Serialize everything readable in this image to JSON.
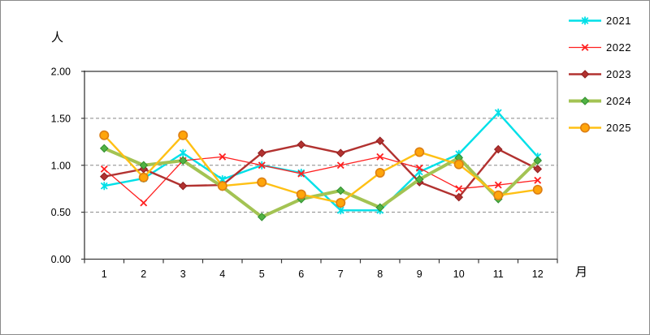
{
  "chart_data": {
    "type": "line",
    "title": "",
    "ylabel": "人",
    "xlabel": "月",
    "categories": [
      "1",
      "2",
      "3",
      "4",
      "5",
      "6",
      "7",
      "8",
      "9",
      "10",
      "11",
      "12"
    ],
    "y_ticks": [
      "0.00",
      "0.50",
      "1.00",
      "1.50",
      "2.00"
    ],
    "y_tick_values": [
      0,
      0.5,
      1.0,
      1.5,
      2.0
    ],
    "ylim": [
      0,
      2
    ],
    "grid": "horizontal-dashed",
    "legend_position": "right",
    "series": [
      {
        "name": "2021",
        "color": "#00E0E8",
        "marker": "asterisk",
        "line_width": 2.4,
        "values": [
          0.78,
          0.86,
          1.13,
          0.85,
          1.0,
          0.92,
          0.52,
          0.52,
          0.93,
          1.12,
          1.56,
          1.09
        ]
      },
      {
        "name": "2022",
        "color": "#FF2020",
        "marker": "x",
        "line_width": 1.3,
        "values": [
          0.96,
          0.6,
          1.05,
          1.09,
          1.0,
          0.91,
          1.0,
          1.09,
          0.97,
          0.75,
          0.79,
          0.84
        ]
      },
      {
        "name": "2023",
        "color": "#B23230",
        "marker": "diamond",
        "marker_fill": "#B23230",
        "marker_stroke": "#8F1F1F",
        "line_width": 2.4,
        "values": [
          0.88,
          0.96,
          0.78,
          0.79,
          1.13,
          1.22,
          1.13,
          1.26,
          0.82,
          0.66,
          1.17,
          0.96
        ]
      },
      {
        "name": "2024",
        "color": "#A3C353",
        "marker": "diamond",
        "marker_fill": "#52B244",
        "marker_stroke": "#2F8F2F",
        "line_width": 4.0,
        "values": [
          1.18,
          1.0,
          1.05,
          0.77,
          0.45,
          0.64,
          0.73,
          0.55,
          0.85,
          1.08,
          0.64,
          1.05
        ]
      },
      {
        "name": "2025",
        "color": "#FFC014",
        "marker": "circle",
        "marker_fill": "#FFA50A",
        "marker_stroke": "#DC7E14",
        "line_width": 2.4,
        "values": [
          1.32,
          0.87,
          1.32,
          0.78,
          0.82,
          0.69,
          0.6,
          0.92,
          1.14,
          1.01,
          0.68,
          0.74
        ]
      }
    ]
  }
}
